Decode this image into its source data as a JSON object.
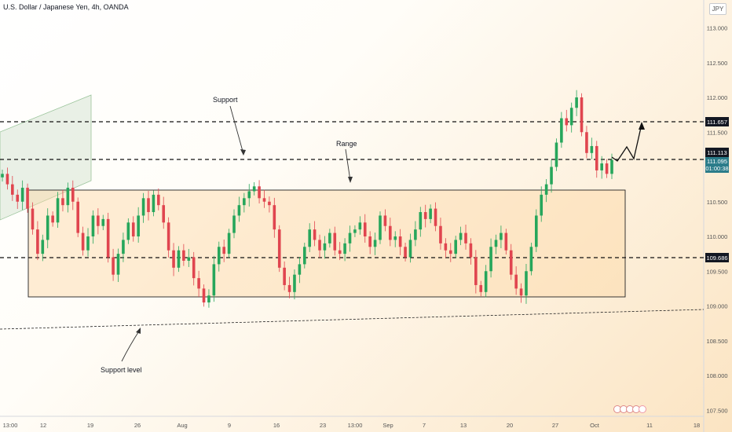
{
  "header": {
    "title": "U.S. Dollar / Japanese Yen, 4h, OANDA",
    "currency": "JPY"
  },
  "chart_data": {
    "type": "candlestick",
    "symbol": "USD/JPY",
    "timeframe": "4h",
    "ylim": [
      107.4,
      113.3
    ],
    "y_ticks": [
      "113.000",
      "112.500",
      "112.000",
      "111.500",
      "111.000",
      "110.500",
      "110.000",
      "109.500",
      "109.000",
      "108.500",
      "108.000",
      "107.500"
    ],
    "x_ticks": [
      "13:00",
      "12",
      "19",
      "26",
      "Aug",
      "9",
      "16",
      "23",
      "13:00",
      "Sep",
      "7",
      "13",
      "20",
      "27",
      "Oct",
      "11",
      "18"
    ],
    "price_labels": [
      {
        "value": "111.657",
        "style": "dark"
      },
      {
        "value": "111.113",
        "style": "dark"
      },
      {
        "value": "111.095",
        "countdown": "01:00:38",
        "style": "current"
      },
      {
        "value": "109.686",
        "style": "dark"
      }
    ],
    "levels": [
      111.657,
      111.113,
      109.686
    ],
    "range_box": {
      "top": 110.66,
      "bottom": 109.13
    },
    "annotations": [
      "Support",
      "Range",
      "Support level"
    ],
    "closes": [
      110.9,
      110.75,
      110.6,
      110.5,
      110.7,
      110.4,
      110.1,
      109.75,
      109.95,
      110.3,
      110.2,
      110.55,
      110.45,
      110.7,
      110.5,
      110.05,
      109.8,
      110.0,
      110.3,
      110.15,
      110.25,
      109.7,
      109.45,
      109.75,
      109.95,
      110.2,
      110.0,
      110.3,
      110.55,
      110.35,
      110.6,
      110.45,
      110.2,
      109.8,
      109.55,
      109.8,
      109.65,
      109.7,
      109.4,
      109.25,
      109.05,
      109.15,
      109.6,
      109.85,
      109.75,
      110.05,
      110.3,
      110.45,
      110.55,
      110.65,
      110.72,
      110.55,
      110.5,
      110.45,
      110.1,
      109.55,
      109.3,
      109.2,
      109.45,
      109.6,
      109.85,
      110.1,
      109.95,
      109.8,
      109.9,
      110.05,
      109.8,
      109.75,
      109.9,
      110.05,
      110.1,
      110.2,
      110.0,
      109.85,
      109.95,
      110.3,
      110.15,
      109.95,
      110.0,
      109.85,
      109.7,
      109.95,
      110.1,
      110.35,
      110.25,
      110.4,
      110.15,
      109.9,
      109.8,
      109.75,
      109.95,
      110.05,
      109.9,
      109.7,
      109.3,
      109.2,
      109.5,
      109.85,
      109.95,
      110.05,
      109.8,
      109.45,
      109.25,
      109.15,
      109.5,
      109.85,
      110.3,
      110.6,
      110.75,
      111.0,
      111.35,
      111.7,
      111.6,
      111.85,
      112.0,
      111.5,
      111.2,
      111.3,
      110.95,
      111.05,
      110.9,
      111.1
    ]
  }
}
